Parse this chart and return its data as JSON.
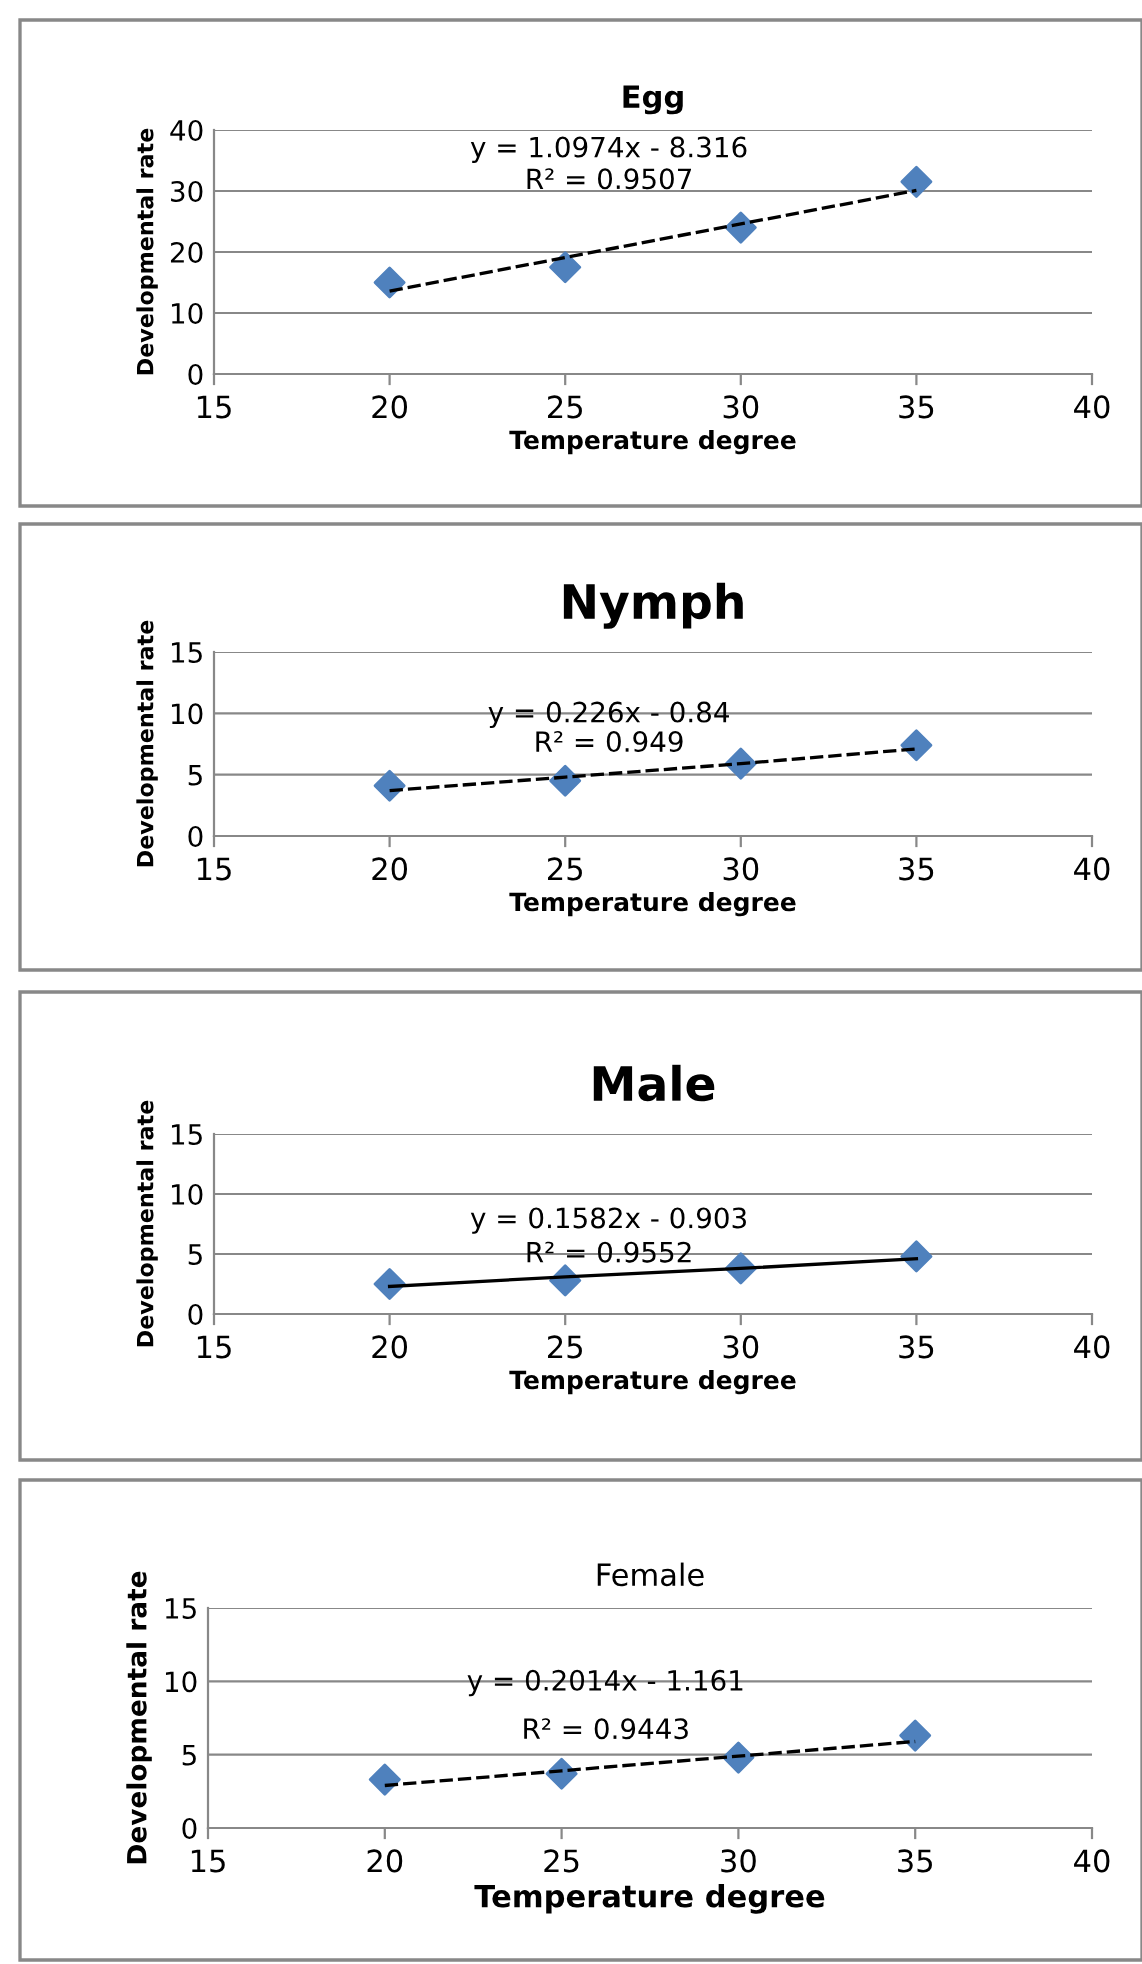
{
  "chart_data": [
    {
      "type": "scatter",
      "title": "Egg",
      "xlabel": "Temperature degree",
      "ylabel": "Developmental rate",
      "x": [
        20,
        25,
        30,
        35
      ],
      "xlim": [
        15,
        40
      ],
      "xticks": [
        15,
        20,
        25,
        30,
        35,
        40
      ],
      "ylim": [
        0,
        40
      ],
      "yticks": [
        0,
        10,
        20,
        30,
        40
      ],
      "grid": "y",
      "legend": false,
      "series": [
        {
          "marker": "diamond",
          "color": "#4f81bd",
          "values": [
            15,
            17.5,
            24,
            31.5
          ]
        },
        {
          "type": "line",
          "marker": "none",
          "color": "#000000",
          "line_style": "dashed",
          "values": [
            13.6,
            19.1,
            24.6,
            30.1
          ]
        }
      ],
      "annotations": [
        "y = 1.0974x - 8.316",
        "R² = 0.9507"
      ]
    },
    {
      "type": "scatter",
      "title": "Nymph",
      "xlabel": "Temperature degree",
      "ylabel": "Developmental rate",
      "x": [
        20,
        25,
        30,
        35
      ],
      "xlim": [
        15,
        40
      ],
      "xticks": [
        15,
        20,
        25,
        30,
        35,
        40
      ],
      "ylim": [
        0,
        15
      ],
      "yticks": [
        0,
        5,
        10,
        15
      ],
      "grid": "y",
      "legend": false,
      "series": [
        {
          "marker": "diamond",
          "color": "#4f81bd",
          "values": [
            4.1,
            4.5,
            5.9,
            7.4
          ]
        },
        {
          "type": "line",
          "marker": "none",
          "color": "#000000",
          "line_style": "dashed",
          "values": [
            3.7,
            4.8,
            5.9,
            7.1
          ]
        }
      ],
      "annotations": [
        "y = 0.226x - 0.84",
        "R² = 0.949"
      ]
    },
    {
      "type": "scatter",
      "title": "Male",
      "xlabel": "Temperature degree",
      "ylabel": "Developmental rate",
      "x": [
        20,
        25,
        30,
        35
      ],
      "xlim": [
        15,
        40
      ],
      "xticks": [
        15,
        20,
        25,
        30,
        35,
        40
      ],
      "ylim": [
        0,
        15
      ],
      "yticks": [
        0,
        5,
        10,
        15
      ],
      "grid": "y",
      "legend": false,
      "series": [
        {
          "marker": "diamond",
          "color": "#4f81bd",
          "values": [
            2.5,
            2.8,
            3.8,
            4.8
          ]
        },
        {
          "type": "line",
          "marker": "none",
          "color": "#000000",
          "line_style": "solid",
          "values": [
            2.3,
            3.1,
            3.8,
            4.6
          ]
        }
      ],
      "annotations": [
        "y = 0.1582x - 0.903",
        "R² = 0.9552"
      ]
    },
    {
      "type": "scatter",
      "title": "Female",
      "xlabel": "Temperature degree",
      "ylabel": "Developmental rate",
      "x": [
        20,
        25,
        30,
        35
      ],
      "xlim": [
        15,
        40
      ],
      "xticks": [
        15,
        20,
        25,
        30,
        35,
        40
      ],
      "ylim": [
        0,
        15
      ],
      "yticks": [
        0,
        5,
        10,
        15
      ],
      "grid": "y",
      "legend": false,
      "series": [
        {
          "marker": "diamond",
          "color": "#4f81bd",
          "values": [
            3.3,
            3.7,
            4.8,
            6.3
          ]
        },
        {
          "type": "line",
          "marker": "none",
          "color": "#000000",
          "line_style": "dashed",
          "values": [
            2.9,
            3.9,
            4.9,
            5.9
          ]
        }
      ],
      "annotations": [
        "y = 0.2014x - 1.161",
        "R² = 0.9443"
      ]
    }
  ]
}
